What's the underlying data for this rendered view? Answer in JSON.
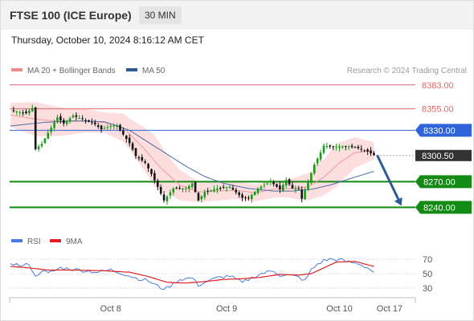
{
  "header": {
    "title": "FTSE 100 (ICE Europe)",
    "interval": "30 MIN",
    "timestamp": "Thursday, October 10, 2024 8:16:12 AM CET"
  },
  "colors": {
    "up": "#1a9a1a",
    "down": "#151515",
    "resistance": "#e06666",
    "pivot": "#2e64d8",
    "support": "#138a13",
    "current": "#333333",
    "ma20": "#f09a9a",
    "bollinger_fill": "#fbd3d3",
    "ma50": "#4d6da8",
    "arrow": "#2c5a98",
    "rsi": "#4a7be0",
    "rsi_ma": "#e02020"
  },
  "chart_data": [
    {
      "type": "candlestick",
      "title": "FTSE 100 (ICE Europe)",
      "legend": [
        {
          "name": "MA 20 + Bollinger Bands",
          "color": "#f08a8a"
        },
        {
          "name": "MA 50",
          "color": "#2c5a98"
        }
      ],
      "credit": "Research © 2024 Trading Central",
      "ylim": [
        8235,
        8387
      ],
      "x_ticks": [
        {
          "label": "Oct 8",
          "index": 32
        },
        {
          "label": "Oct 9",
          "index": 69
        },
        {
          "label": "Oct 10",
          "index": 105
        },
        {
          "label": "Oct 17",
          "index": 121
        }
      ],
      "levels": [
        {
          "value": 8383.0,
          "label": "8383.00",
          "kind": "resistance"
        },
        {
          "value": 8355.0,
          "label": "8355.00",
          "kind": "resistance"
        },
        {
          "value": 8330.0,
          "label": "8330.00",
          "kind": "pivot"
        },
        {
          "value": 8300.5,
          "label": "8300.50",
          "kind": "current"
        },
        {
          "value": 8270.0,
          "label": "8270.00",
          "kind": "support"
        },
        {
          "value": 8240.0,
          "label": "8240.00",
          "kind": "support"
        }
      ],
      "forecast_arrow": {
        "from_index": 116,
        "from_value": 8301,
        "to_index": 123,
        "to_value": 8240
      },
      "anchors": {
        "close": [
          [
            0,
            8353
          ],
          [
            5,
            8350
          ],
          [
            7,
            8356
          ],
          [
            8,
            8308
          ],
          [
            10,
            8314
          ],
          [
            12,
            8327
          ],
          [
            15,
            8345
          ],
          [
            17,
            8338
          ],
          [
            20,
            8347
          ],
          [
            23,
            8343
          ],
          [
            27,
            8337
          ],
          [
            29,
            8331
          ],
          [
            32,
            8335
          ],
          [
            34,
            8336
          ],
          [
            35,
            8330
          ],
          [
            38,
            8315
          ],
          [
            40,
            8300
          ],
          [
            43,
            8292
          ],
          [
            45,
            8279
          ],
          [
            47,
            8264
          ],
          [
            49,
            8248
          ],
          [
            52,
            8262
          ],
          [
            56,
            8262
          ],
          [
            58,
            8268
          ],
          [
            60,
            8248
          ],
          [
            62,
            8258
          ],
          [
            66,
            8262
          ],
          [
            70,
            8264
          ],
          [
            74,
            8251
          ],
          [
            76,
            8251
          ],
          [
            79,
            8262
          ],
          [
            83,
            8270
          ],
          [
            86,
            8261
          ],
          [
            88,
            8272
          ],
          [
            90,
            8262
          ],
          [
            92,
            8262
          ],
          [
            93,
            8250
          ],
          [
            95,
            8270
          ],
          [
            97,
            8290
          ],
          [
            99,
            8304
          ],
          [
            100,
            8312
          ],
          [
            102,
            8311
          ],
          [
            105,
            8311
          ],
          [
            108,
            8311
          ],
          [
            111,
            8309
          ],
          [
            114,
            8305
          ],
          [
            116,
            8301
          ]
        ],
        "ma20": [
          [
            0,
            8348
          ],
          [
            8,
            8343
          ],
          [
            16,
            8340
          ],
          [
            24,
            8341
          ],
          [
            30,
            8339
          ],
          [
            36,
            8333
          ],
          [
            42,
            8311
          ],
          [
            48,
            8286
          ],
          [
            54,
            8266
          ],
          [
            60,
            8258
          ],
          [
            66,
            8259
          ],
          [
            72,
            8260
          ],
          [
            78,
            8257
          ],
          [
            84,
            8261
          ],
          [
            90,
            8262
          ],
          [
            95,
            8264
          ],
          [
            100,
            8275
          ],
          [
            105,
            8292
          ],
          [
            110,
            8304
          ],
          [
            116,
            8306
          ]
        ],
        "band_width": [
          [
            0,
            14
          ],
          [
            8,
            20
          ],
          [
            20,
            15
          ],
          [
            30,
            12
          ],
          [
            38,
            18
          ],
          [
            46,
            30
          ],
          [
            52,
            20
          ],
          [
            60,
            12
          ],
          [
            75,
            10
          ],
          [
            88,
            10
          ],
          [
            96,
            17
          ],
          [
            104,
            25
          ],
          [
            110,
            18
          ],
          [
            116,
            10
          ]
        ],
        "ma50": [
          [
            0,
            8335
          ],
          [
            10,
            8339
          ],
          [
            20,
            8341
          ],
          [
            30,
            8340
          ],
          [
            38,
            8330
          ],
          [
            44,
            8316
          ],
          [
            50,
            8302
          ],
          [
            56,
            8288
          ],
          [
            62,
            8276
          ],
          [
            68,
            8268
          ],
          [
            76,
            8262
          ],
          [
            84,
            8259
          ],
          [
            90,
            8259
          ],
          [
            96,
            8261
          ],
          [
            102,
            8266
          ],
          [
            108,
            8273
          ],
          [
            116,
            8282
          ]
        ]
      }
    },
    {
      "type": "line",
      "legend": [
        {
          "name": "RSI",
          "color": "#4a7be0"
        },
        {
          "name": "9MA",
          "color": "#e02020"
        }
      ],
      "y_ticks": [
        70,
        50,
        30
      ],
      "ylim": [
        20,
        80
      ],
      "anchors": {
        "rsi": [
          [
            0,
            65
          ],
          [
            4,
            60
          ],
          [
            6,
            64
          ],
          [
            8,
            45
          ],
          [
            10,
            55
          ],
          [
            12,
            50
          ],
          [
            16,
            58
          ],
          [
            20,
            56
          ],
          [
            24,
            54
          ],
          [
            28,
            52
          ],
          [
            32,
            55
          ],
          [
            36,
            50
          ],
          [
            40,
            44
          ],
          [
            44,
            40
          ],
          [
            46,
            35
          ],
          [
            48,
            30
          ],
          [
            50,
            30
          ],
          [
            54,
            42
          ],
          [
            58,
            44
          ],
          [
            60,
            34
          ],
          [
            62,
            38
          ],
          [
            66,
            44
          ],
          [
            70,
            47
          ],
          [
            74,
            37
          ],
          [
            76,
            42
          ],
          [
            80,
            50
          ],
          [
            84,
            54
          ],
          [
            86,
            48
          ],
          [
            90,
            47
          ],
          [
            92,
            45
          ],
          [
            94,
            40
          ],
          [
            96,
            55
          ],
          [
            98,
            63
          ],
          [
            100,
            68
          ],
          [
            102,
            70
          ],
          [
            105,
            69
          ],
          [
            108,
            66
          ],
          [
            111,
            64
          ],
          [
            114,
            58
          ],
          [
            116,
            52
          ]
        ],
        "rsi_ma": [
          [
            0,
            60
          ],
          [
            6,
            58
          ],
          [
            12,
            55
          ],
          [
            20,
            55
          ],
          [
            30,
            54
          ],
          [
            38,
            52
          ],
          [
            44,
            46
          ],
          [
            50,
            38
          ],
          [
            56,
            37
          ],
          [
            62,
            39
          ],
          [
            68,
            42
          ],
          [
            74,
            43
          ],
          [
            80,
            45
          ],
          [
            86,
            49
          ],
          [
            92,
            48
          ],
          [
            96,
            50
          ],
          [
            100,
            58
          ],
          [
            104,
            66
          ],
          [
            110,
            67
          ],
          [
            116,
            60
          ]
        ]
      }
    }
  ]
}
